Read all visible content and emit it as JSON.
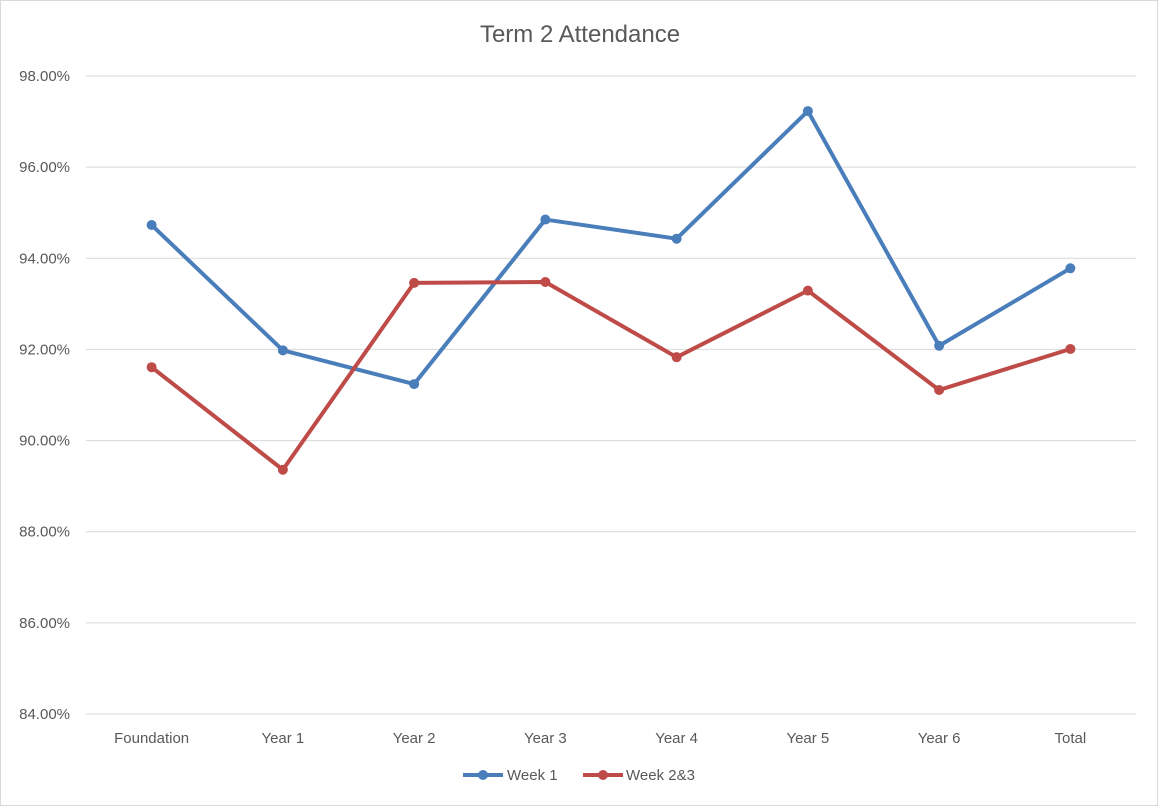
{
  "chart_data": {
    "type": "line",
    "title": "Term 2 Attendance",
    "xlabel": "",
    "ylabel": "",
    "categories": [
      "Foundation",
      "Year 1",
      "Year 2",
      "Year 3",
      "Year 4",
      "Year 5",
      "Year 6",
      "Total"
    ],
    "ylim": [
      84,
      98
    ],
    "yticks": [
      84,
      86,
      88,
      90,
      92,
      94,
      96,
      98
    ],
    "ytick_format": "percent_2dp",
    "grid": true,
    "legend_position": "bottom",
    "series": [
      {
        "name": "Week 1",
        "color": "#4a7ebb",
        "values": [
          94.73,
          91.98,
          91.24,
          94.85,
          94.43,
          97.23,
          92.08,
          93.78
        ]
      },
      {
        "name": "Week 2&3",
        "color": "#be4b48",
        "values": [
          91.61,
          89.36,
          93.46,
          93.48,
          91.83,
          93.29,
          91.11,
          92.01
        ]
      }
    ]
  }
}
